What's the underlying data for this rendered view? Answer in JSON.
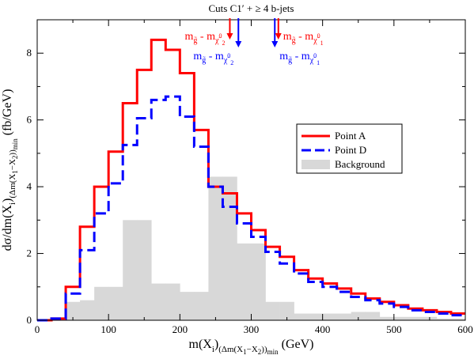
{
  "chart_data": {
    "type": "step",
    "title": "Cuts C1′ + ≥ 4 b-jets",
    "xlabel": {
      "main": "m(X",
      "sub_i": "i",
      "paren_open": ")",
      "sub_rest": "(Δm(X",
      "sub_1": "1",
      "sub_dash": "−X",
      "sub_2": "2",
      "sub_close": "))",
      "sub_min": "min",
      "unit": " (GeV)"
    },
    "ylabel": {
      "main": "dσ/dm(X",
      "sub_i": "i",
      "paren_open": ")",
      "sub_rest": "(Δm(X",
      "sub_1": "1",
      "sub_dash": "−X",
      "sub_2": "2",
      "sub_close": "))",
      "sub_min": "min",
      "unit": " (fb/GeV)"
    },
    "xlim": [
      0,
      600
    ],
    "ylim": [
      0,
      9
    ],
    "xticks": [
      0,
      100,
      200,
      300,
      400,
      500,
      600
    ],
    "yticks": [
      0,
      2,
      4,
      6,
      8
    ],
    "bin_edges": [
      0,
      20,
      40,
      60,
      80,
      100,
      120,
      140,
      160,
      180,
      200,
      220,
      240,
      260,
      280,
      300,
      320,
      340,
      360,
      380,
      400,
      420,
      440,
      460,
      480,
      500,
      520,
      540,
      560,
      580,
      600
    ],
    "series": [
      {
        "name": "Point A",
        "color": "#ff0000",
        "dash": "solid",
        "values": [
          0.0,
          0.05,
          1.0,
          2.8,
          4.0,
          5.05,
          6.5,
          7.5,
          8.4,
          8.1,
          7.4,
          5.7,
          4.0,
          3.8,
          3.2,
          2.7,
          2.2,
          1.9,
          1.5,
          1.25,
          1.1,
          0.95,
          0.8,
          0.65,
          0.55,
          0.45,
          0.35,
          0.3,
          0.25,
          0.2
        ]
      },
      {
        "name": "Point D",
        "color": "#0000ff",
        "dash": "dashed",
        "values": [
          0.0,
          0.05,
          0.8,
          2.1,
          3.2,
          4.1,
          5.25,
          6.05,
          6.6,
          6.7,
          6.1,
          5.2,
          4.0,
          3.4,
          2.9,
          2.5,
          2.05,
          1.7,
          1.4,
          1.15,
          1.0,
          0.85,
          0.7,
          0.6,
          0.5,
          0.4,
          0.3,
          0.25,
          0.2,
          0.15
        ]
      },
      {
        "name": "Background",
        "color": "#d8d8d8",
        "dash": "filled",
        "values": [
          0.0,
          0.0,
          0.55,
          0.6,
          1.0,
          1.0,
          3.0,
          3.0,
          1.1,
          1.1,
          0.85,
          0.85,
          4.3,
          4.3,
          2.3,
          2.3,
          0.55,
          0.55,
          0.2,
          0.2,
          0.2,
          0.2,
          0.25,
          0.25,
          0.1,
          0.1,
          0.1,
          0.1,
          0.05,
          0.05
        ]
      }
    ],
    "legend": {
      "placement": "right-middle",
      "entries": [
        "Point A",
        "Point D",
        "Background"
      ]
    },
    "annotations": [
      {
        "id": "red-left",
        "color": "#ff0000",
        "x": 270,
        "label_main": "m",
        "label_sub1": "g̃",
        "label_mid": " - m",
        "label_sub2": "χ̃",
        "label_sub2_sup": "0",
        "label_sub2_idx": "2",
        "side": "left"
      },
      {
        "id": "blue-left",
        "color": "#0000ff",
        "x": 282,
        "label_main": "m",
        "label_sub1": "g̃",
        "label_mid": " - m",
        "label_sub2": "χ̃",
        "label_sub2_sup": "0",
        "label_sub2_idx": "2",
        "side": "left"
      },
      {
        "id": "blue-right",
        "color": "#0000ff",
        "x": 333,
        "label_main": "m",
        "label_sub1": "g̃",
        "label_mid": " - m",
        "label_sub2": "χ̃",
        "label_sub2_sup": "0",
        "label_sub2_idx": "1",
        "side": "right"
      },
      {
        "id": "red-right",
        "color": "#ff0000",
        "x": 338,
        "label_main": "m",
        "label_sub1": "g̃",
        "label_mid": " - m",
        "label_sub2": "χ̃",
        "label_sub2_sup": "0",
        "label_sub2_idx": "1",
        "side": "right"
      }
    ]
  }
}
